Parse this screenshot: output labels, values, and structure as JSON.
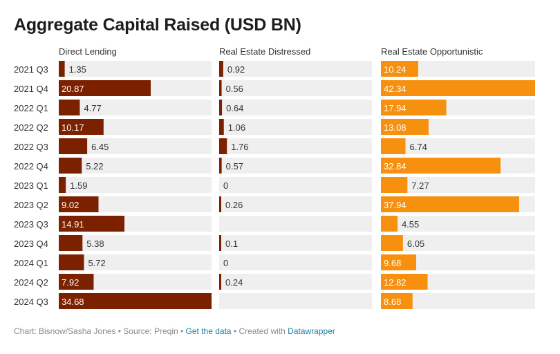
{
  "title": "Aggregate Capital Raised (USD BN)",
  "colors": {
    "background_bar": "#efefef",
    "direct_lending": "#7b2100",
    "real_estate_distressed": "#7b2100",
    "real_estate_opportunistic": "#f6900e",
    "label_inside": "#ffffff",
    "label_outside": "#333333"
  },
  "chart_data": {
    "type": "bar",
    "orientation": "horizontal",
    "layout": "small-multiples",
    "categories": [
      "2021 Q3",
      "2021 Q4",
      "2022 Q1",
      "2022 Q2",
      "2022 Q3",
      "2022 Q4",
      "2023 Q1",
      "2023 Q2",
      "2023 Q3",
      "2023 Q4",
      "2024 Q1",
      "2024 Q2",
      "2024 Q3"
    ],
    "series": [
      {
        "name": "Direct Lending",
        "values": [
          1.35,
          20.87,
          4.77,
          10.17,
          6.45,
          5.22,
          1.59,
          9.02,
          14.91,
          5.38,
          5.72,
          7.92,
          34.68
        ],
        "labels": [
          "1.35",
          "20.87",
          "4.77",
          "10.17",
          "6.45",
          "5.22",
          "1.59",
          "9.02",
          "14.91",
          "5.38",
          "5.72",
          "7.92",
          "34.68"
        ],
        "xlim": [
          0,
          34.68
        ]
      },
      {
        "name": "Real Estate Distressed",
        "values": [
          0.92,
          0.56,
          0.64,
          1.06,
          1.76,
          0.57,
          0,
          0.26,
          null,
          0.1,
          0,
          0.24,
          null
        ],
        "labels": [
          "0.92",
          "0.56",
          "0.64",
          "1.06",
          "1.76",
          "0.57",
          "0",
          "0.26",
          "",
          "0.1",
          "0",
          "0.24",
          ""
        ],
        "xlim": [
          0,
          34.68
        ]
      },
      {
        "name": "Real Estate Opportunistic",
        "values": [
          10.24,
          42.34,
          17.94,
          13.08,
          6.74,
          32.84,
          7.27,
          37.94,
          4.55,
          6.05,
          9.68,
          12.82,
          8.68
        ],
        "labels": [
          "10.24",
          "42.34",
          "17.94",
          "13.08",
          "6.74",
          "32.84",
          "7.27",
          "37.94",
          "4.55",
          "6.05",
          "9.68",
          "12.82",
          "8.68"
        ],
        "xlim": [
          0,
          42.34
        ]
      }
    ],
    "grid": false,
    "legend": "none"
  },
  "footer": {
    "prefix": "Chart: Bisnow/Sasha Jones • Source: Preqin • ",
    "data_link": "Get the data",
    "middle": " • Created with ",
    "tool_link": "Datawrapper"
  }
}
